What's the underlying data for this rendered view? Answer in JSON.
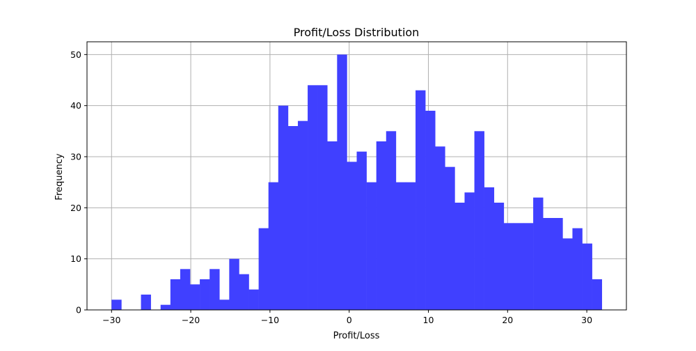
{
  "chart_data": {
    "type": "bar",
    "title": "Profit/Loss Distribution",
    "xlabel": "Profit/Loss",
    "ylabel": "Frequency",
    "xlim": [
      -33.1,
      35.0
    ],
    "ylim": [
      0,
      52.5
    ],
    "grid": true,
    "bar_color": "#4040ff",
    "grid_color": "#b0b0b0",
    "x_ticks": [
      {
        "value": -30,
        "label": "−30"
      },
      {
        "value": -20,
        "label": "−20"
      },
      {
        "value": -10,
        "label": "−10"
      },
      {
        "value": 0,
        "label": "0"
      },
      {
        "value": 10,
        "label": "10"
      },
      {
        "value": 20,
        "label": "20"
      },
      {
        "value": 30,
        "label": "30"
      }
    ],
    "y_ticks": [
      {
        "value": 0,
        "label": "0"
      },
      {
        "value": 10,
        "label": "10"
      },
      {
        "value": 20,
        "label": "20"
      },
      {
        "value": 30,
        "label": "30"
      },
      {
        "value": 40,
        "label": "40"
      },
      {
        "value": 50,
        "label": "50"
      }
    ],
    "bin_range": [
      -30.0,
      31.9
    ],
    "counts": [
      2,
      0,
      0,
      3,
      0,
      1,
      6,
      8,
      5,
      6,
      8,
      2,
      10,
      7,
      4,
      16,
      25,
      40,
      36,
      37,
      44,
      44,
      33,
      50,
      29,
      31,
      25,
      33,
      35,
      25,
      25,
      43,
      39,
      32,
      28,
      21,
      23,
      35,
      24,
      21,
      17,
      17,
      17,
      22,
      18,
      18,
      14,
      16,
      13,
      6
    ]
  }
}
